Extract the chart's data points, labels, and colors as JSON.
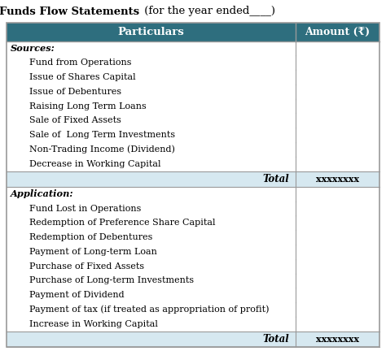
{
  "title_bold": "Funds Flow Statements",
  "title_normal": " (for the year ended____)",
  "header_col1": "Particulars",
  "header_col2": "Amount (₹)",
  "header_bg": "#2e6e7e",
  "header_text_color": "#ffffff",
  "sources_label": "Sources:",
  "sources_items": [
    "Fund from Operations",
    "Issue of Shares Capital",
    "Issue of Debentures",
    "Raising Long Term Loans",
    "Sale of Fixed Assets",
    "Sale of  Long Term Investments",
    "Non-Trading Income (Dividend)",
    "Decrease in Working Capital"
  ],
  "sources_total_label": "Total",
  "sources_total_value": "xxxxxxxx",
  "application_label": "Application:",
  "application_items": [
    "Fund Lost in Operations",
    "Redemption of Preference Share Capital",
    "Redemption of Debentures",
    "Payment of Long-term Loan",
    "Purchase of Fixed Assets",
    "Purchase of Long-term Investments",
    "Payment of Dividend",
    "Payment of tax (if treated as appropriation of profit)",
    "Increase in Working Capital"
  ],
  "application_total_label": "Total",
  "application_total_value": "xxxxxxxx",
  "total_row_bg": "#d6e8f0",
  "bg_color": "#ffffff",
  "border_color": "#999999",
  "text_color": "#000000",
  "col_split": 0.775,
  "title_fontsize": 9.5,
  "header_fontsize": 9.5,
  "label_fontsize": 8.2,
  "item_fontsize": 8.0,
  "total_fontsize": 8.5
}
